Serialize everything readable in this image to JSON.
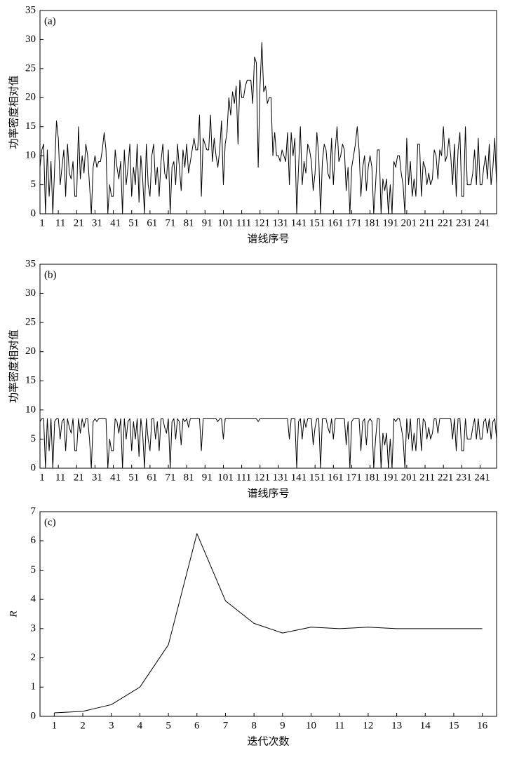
{
  "chart_data": [
    {
      "type": "line",
      "panel_label": "(a)",
      "xlabel": "谱线序号",
      "ylabel": "功率密度相对值",
      "xlim": [
        1,
        250
      ],
      "xticks": [
        1,
        11,
        21,
        31,
        41,
        51,
        61,
        71,
        81,
        91,
        101,
        111,
        121,
        131,
        141,
        151,
        161,
        171,
        181,
        191,
        201,
        211,
        221,
        231,
        241
      ],
      "ylim": [
        0,
        35
      ],
      "yticks": [
        0,
        5,
        10,
        15,
        20,
        25,
        30,
        35
      ],
      "series": [
        {
          "color": "#000000",
          "values": [
            8,
            11,
            12,
            0,
            11,
            3,
            9,
            0,
            8,
            16,
            13,
            5,
            8,
            11,
            3,
            12,
            7,
            6,
            9,
            3,
            3,
            15,
            6,
            10,
            7,
            12,
            10,
            5,
            0,
            8,
            10,
            8,
            9,
            9,
            11,
            14,
            11,
            0,
            5,
            3,
            3,
            11,
            8,
            6,
            9,
            0,
            11,
            5,
            8,
            12,
            3,
            8,
            5,
            12,
            2,
            10,
            6,
            0,
            12,
            5,
            3,
            10,
            12,
            5,
            8,
            3,
            9,
            12,
            7,
            6,
            11,
            0,
            8,
            9,
            5,
            12,
            8,
            4,
            11,
            8,
            12,
            7,
            9,
            11,
            13,
            11,
            11,
            17,
            3,
            13,
            12,
            11,
            11,
            17,
            9,
            13,
            10,
            8,
            11,
            16,
            5,
            12,
            14,
            20,
            17,
            21,
            19,
            22,
            12,
            23,
            20,
            20,
            22,
            23,
            23,
            23,
            19,
            27,
            26,
            8,
            22,
            29.5,
            21,
            22,
            19,
            20,
            20,
            10,
            14,
            10,
            10,
            9,
            11,
            10,
            9,
            14,
            5,
            14,
            10,
            13,
            0,
            8,
            15,
            5,
            9,
            7,
            12,
            11,
            9,
            4,
            7,
            14,
            10,
            0,
            9,
            12,
            11,
            7,
            6,
            13,
            5,
            11,
            15,
            9,
            10,
            12,
            11,
            4,
            8,
            0,
            8,
            10,
            12,
            15,
            11,
            3,
            8,
            10,
            4,
            8,
            10,
            8,
            0,
            5,
            11,
            11,
            0,
            6,
            4,
            6,
            0,
            5,
            0,
            9,
            8,
            10,
            10,
            7,
            5,
            0,
            13,
            5,
            9,
            3,
            6,
            3,
            12,
            12,
            3,
            9,
            8,
            5,
            7,
            5,
            6,
            11,
            10,
            6,
            11,
            10,
            15,
            9,
            10,
            13,
            10,
            5,
            12,
            3,
            11,
            14,
            3,
            3,
            15,
            5,
            5,
            5,
            7,
            11,
            5,
            13,
            5,
            5,
            8,
            10,
            6,
            12,
            5,
            8,
            13,
            5
          ]
        }
      ]
    },
    {
      "type": "line",
      "panel_label": "(b)",
      "xlabel": "谱线序号",
      "ylabel": "功率密度相对值",
      "xlim": [
        1,
        250
      ],
      "xticks": [
        1,
        11,
        21,
        31,
        41,
        51,
        61,
        71,
        81,
        91,
        101,
        111,
        121,
        131,
        141,
        151,
        161,
        171,
        181,
        191,
        201,
        211,
        221,
        231,
        241
      ],
      "ylim": [
        0,
        35
      ],
      "yticks": [
        0,
        5,
        10,
        15,
        20,
        25,
        30,
        35
      ],
      "series": [
        {
          "color": "#000000",
          "values": [
            8,
            8.5,
            8.5,
            0,
            8.5,
            3,
            8.5,
            0,
            8,
            8.5,
            8.5,
            5,
            8,
            8.5,
            3,
            8.5,
            7,
            6,
            8.5,
            3,
            3,
            8.5,
            6,
            8.5,
            7,
            8.5,
            8.5,
            5,
            0,
            8,
            8.5,
            8,
            8.5,
            8.5,
            8.5,
            8.5,
            8.5,
            0,
            5,
            3,
            3,
            8.5,
            8,
            6,
            8.5,
            0,
            8.5,
            5,
            8,
            8.5,
            3,
            8,
            5,
            8.5,
            2,
            8.5,
            6,
            0,
            8.5,
            5,
            3,
            8.5,
            8.5,
            5,
            8,
            3,
            8.5,
            8.5,
            7,
            6,
            8.5,
            0,
            8,
            8.5,
            5,
            8.5,
            8,
            4,
            8.5,
            8,
            8.5,
            7,
            8.5,
            8.5,
            8.5,
            8.5,
            8.5,
            8.5,
            3,
            8.5,
            8.5,
            8.5,
            8.5,
            8.5,
            8.5,
            8.5,
            8.5,
            8,
            8.5,
            8.5,
            5,
            8.5,
            8.5,
            8.5,
            8.5,
            8.5,
            8.5,
            8.5,
            8.5,
            8.5,
            8.5,
            8.5,
            8.5,
            8.5,
            8.5,
            8.5,
            8.5,
            8.5,
            8.5,
            8,
            8.5,
            8.5,
            8.5,
            8.5,
            8.5,
            8.5,
            8.5,
            8.5,
            8.5,
            8.5,
            8.5,
            8.5,
            8.5,
            8.5,
            8.5,
            8.5,
            5,
            8.5,
            8.5,
            8.5,
            0,
            8,
            8.5,
            5,
            8.5,
            7,
            8.5,
            8.5,
            8.5,
            4,
            7,
            8.5,
            8.5,
            0,
            8.5,
            8.5,
            8.5,
            7,
            6,
            8.5,
            5,
            8.5,
            8.5,
            8.5,
            8.5,
            8.5,
            8.5,
            4,
            8,
            0,
            8,
            8.5,
            8.5,
            8.5,
            8.5,
            3,
            8,
            8.5,
            4,
            8,
            8.5,
            8,
            0,
            5,
            8.5,
            8.5,
            0,
            6,
            4,
            6,
            0,
            5,
            0,
            8.5,
            8,
            8.5,
            8.5,
            7,
            5,
            0,
            8.5,
            5,
            8.5,
            3,
            6,
            3,
            8.5,
            8.5,
            3,
            8.5,
            8,
            5,
            7,
            5,
            6,
            8.5,
            8.5,
            6,
            8.5,
            8.5,
            8.5,
            8.5,
            8.5,
            8.5,
            8.5,
            5,
            8.5,
            3,
            8.5,
            8.5,
            3,
            3,
            8.5,
            5,
            5,
            5,
            7,
            8.5,
            5,
            8.5,
            5,
            5,
            8,
            8.5,
            6,
            8.5,
            5,
            8,
            8.5,
            5
          ]
        }
      ]
    },
    {
      "type": "line",
      "panel_label": "(c)",
      "xlabel": "迭代次数",
      "ylabel": "R",
      "x": [
        1,
        2,
        3,
        4,
        5,
        6,
        7,
        8,
        9,
        10,
        11,
        12,
        13,
        14,
        15,
        16
      ],
      "xlim": [
        0.5,
        16.5
      ],
      "xticks": [
        1,
        2,
        3,
        4,
        5,
        6,
        7,
        8,
        9,
        10,
        11,
        12,
        13,
        14,
        15,
        16
      ],
      "ylim": [
        0,
        7
      ],
      "yticks": [
        0,
        1,
        2,
        3,
        4,
        5,
        6,
        7
      ],
      "series": [
        {
          "color": "#000000",
          "values": [
            0.12,
            0.17,
            0.4,
            1.0,
            2.45,
            6.25,
            3.95,
            3.18,
            2.85,
            3.05,
            3.0,
            3.05,
            3.0,
            3.0,
            3.0,
            3.0
          ]
        }
      ]
    }
  ]
}
